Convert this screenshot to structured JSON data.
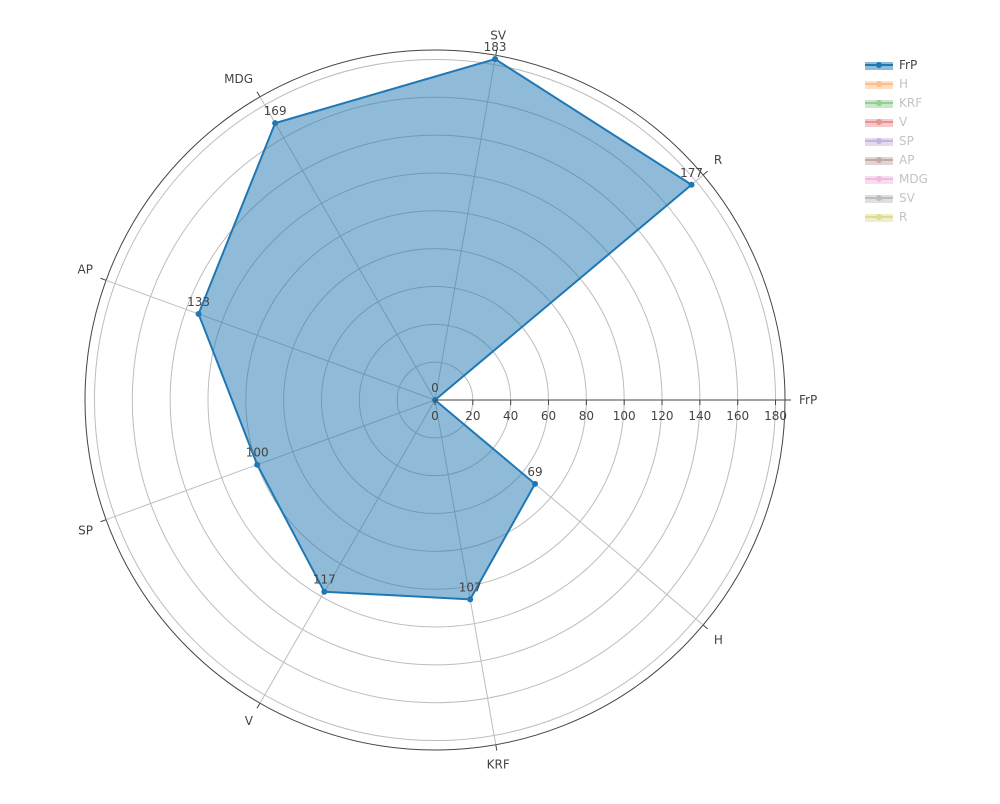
{
  "chart_data": {
    "type": "radar",
    "angular_axis": {
      "categories": [
        "FrP",
        "H",
        "KRF",
        "V",
        "SP",
        "AP",
        "MDG",
        "SV",
        "R"
      ],
      "rotation_deg": 0,
      "direction": "clockwise"
    },
    "radial_axis": {
      "range": [
        0,
        185
      ],
      "ticks": [
        0,
        20,
        40,
        60,
        80,
        100,
        120,
        140,
        160,
        180
      ]
    },
    "series": [
      {
        "name": "FrP",
        "visible": true,
        "color": "#1f77b4",
        "fill": "toself",
        "points": [
          {
            "category": "FrP",
            "value": 0
          },
          {
            "category": "H",
            "value": 69
          },
          {
            "category": "KRF",
            "value": 107
          },
          {
            "category": "V",
            "value": 117
          },
          {
            "category": "SP",
            "value": 100
          },
          {
            "category": "AP",
            "value": 133
          },
          {
            "category": "MDG",
            "value": 169
          },
          {
            "category": "SV",
            "value": 183
          },
          {
            "category": "R",
            "value": 177
          },
          {
            "category": "FrP",
            "value": 0
          }
        ]
      },
      {
        "name": "H",
        "visible": false,
        "color": "#ff7f0e"
      },
      {
        "name": "KRF",
        "visible": false,
        "color": "#2ca02c"
      },
      {
        "name": "V",
        "visible": false,
        "color": "#d62728"
      },
      {
        "name": "SP",
        "visible": false,
        "color": "#9467bd"
      },
      {
        "name": "AP",
        "visible": false,
        "color": "#8c564b"
      },
      {
        "name": "MDG",
        "visible": false,
        "color": "#e377c2"
      },
      {
        "name": "SV",
        "visible": false,
        "color": "#7f7f7f"
      },
      {
        "name": "R",
        "visible": false,
        "color": "#bcbd22"
      }
    ],
    "legend": {
      "position": "top-right"
    },
    "grid": true
  }
}
